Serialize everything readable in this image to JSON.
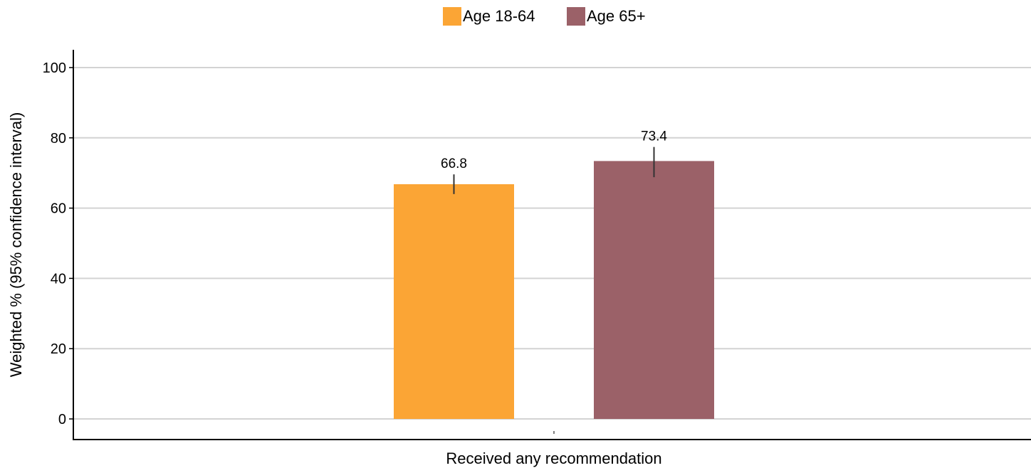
{
  "chart_data": {
    "type": "bar",
    "categories": [
      "Received any recommendation"
    ],
    "series": [
      {
        "name": "Age 18-64",
        "values": [
          66.8
        ],
        "ci_low": [
          64.0
        ],
        "ci_high": [
          69.6
        ],
        "color": "#FBA535"
      },
      {
        "name": "Age 65+",
        "values": [
          73.4
        ],
        "ci_low": [
          68.8
        ],
        "ci_high": [
          77.4
        ],
        "color": "#9B6168"
      }
    ],
    "ylabel": "Weighted % (95% confidence interval)",
    "xlabel": "",
    "ylim": [
      0,
      100
    ],
    "yticks": [
      "0",
      "20",
      "40",
      "60",
      "80",
      "100"
    ],
    "data_labels": [
      "66.8",
      "73.4"
    ],
    "grid": true,
    "legend": "top-center"
  }
}
